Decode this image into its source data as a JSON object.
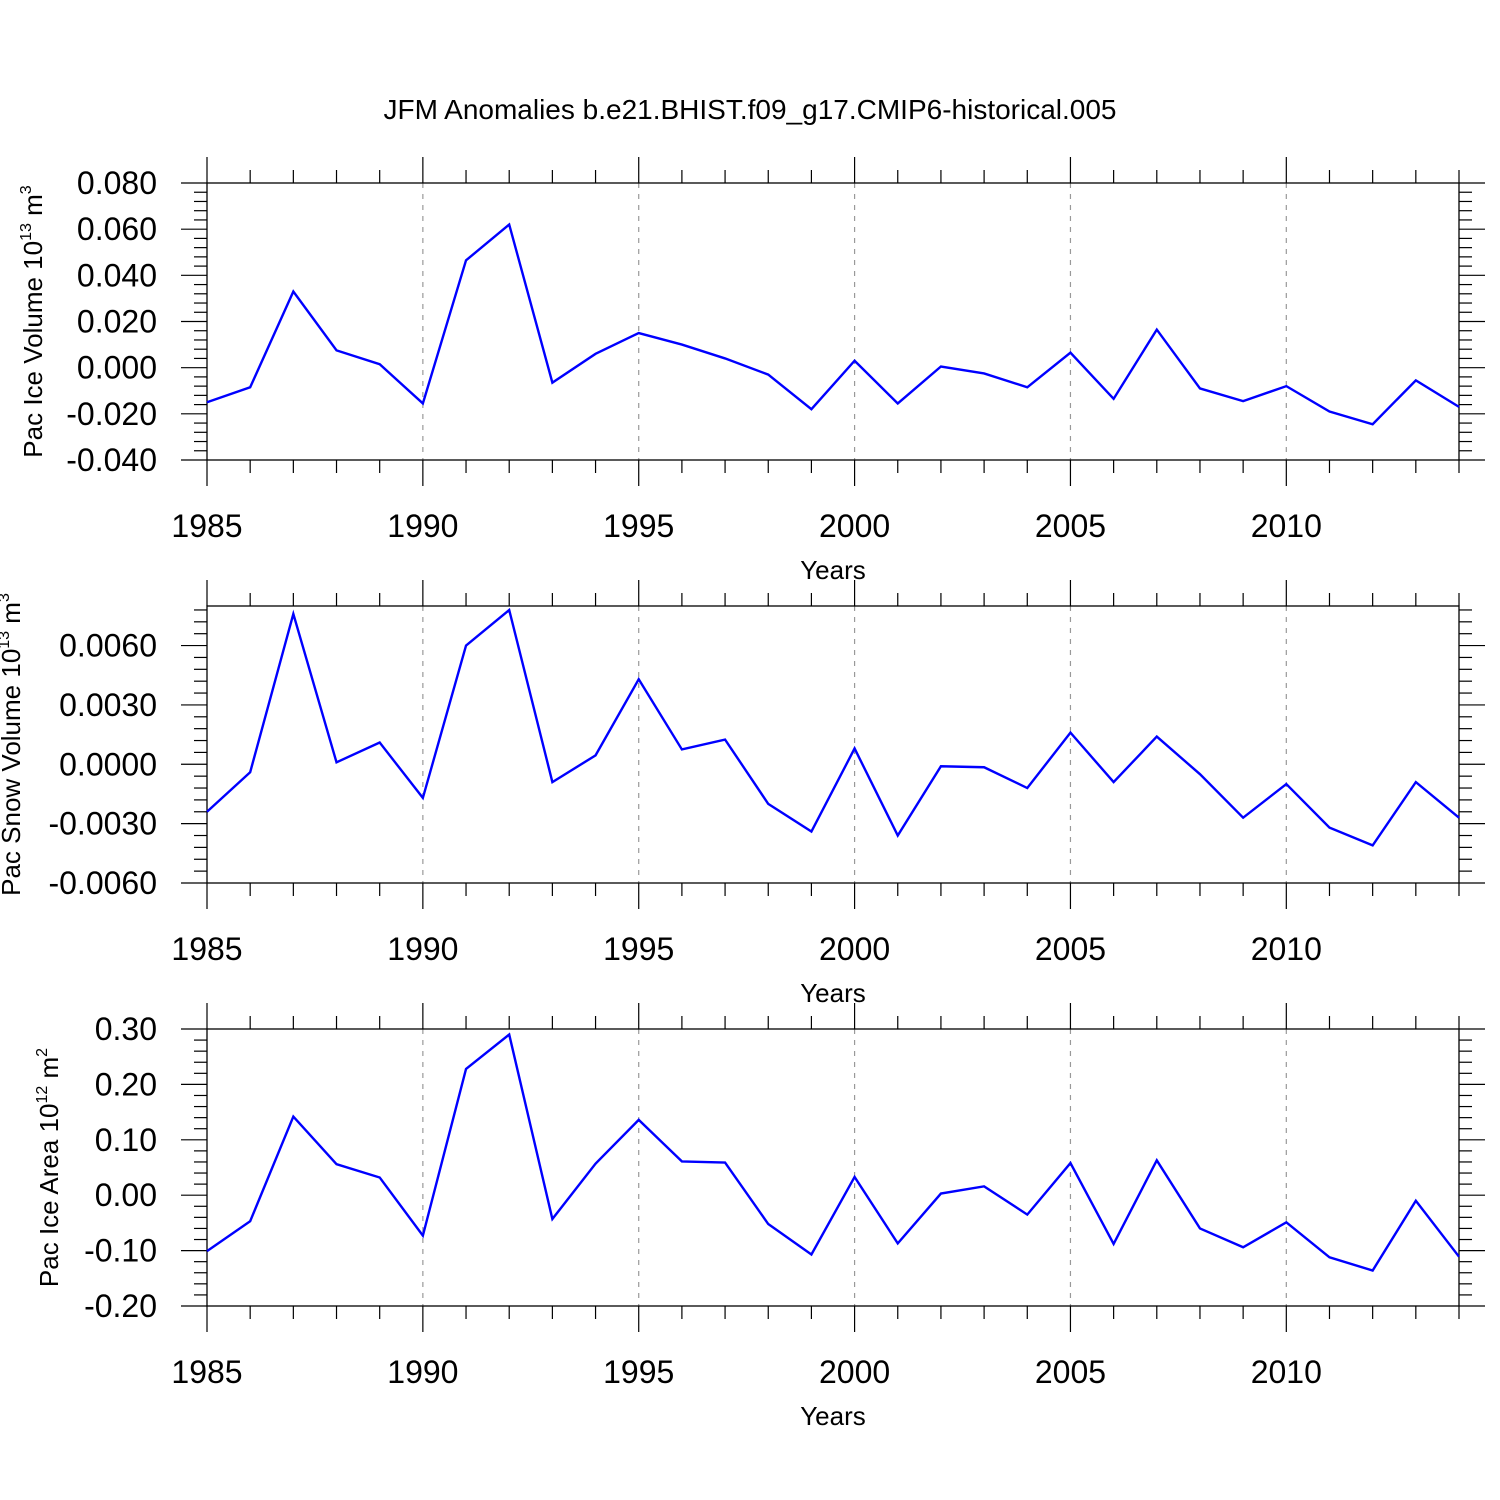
{
  "title": "JFM Anomalies b.e21.BHIST.f09_g17.CMIP6-historical.005",
  "line_color": "#0000ff",
  "chart_data": [
    {
      "type": "line",
      "ylabel_main": "Pac Ice Volume 10",
      "ylabel_exp": "13",
      "ylabel_unit": " m",
      "ylabel_unit_exp": "3",
      "xlabel": "Years",
      "xlim": [
        1985,
        2014
      ],
      "ylim": [
        -0.04,
        0.08
      ],
      "yticks": [
        -0.04,
        -0.02,
        0.0,
        0.02,
        0.04,
        0.06,
        0.08
      ],
      "ytick_labels": [
        "-0.040",
        "-0.020",
        "0.000",
        "0.020",
        "0.040",
        "0.060",
        "0.080"
      ],
      "xticks": [
        1985,
        1990,
        1995,
        2000,
        2005,
        2010
      ],
      "xtick_labels": [
        "1985",
        "1990",
        "1995",
        "2000",
        "2005",
        "2010"
      ],
      "x": [
        1985,
        1986,
        1987,
        1988,
        1989,
        1990,
        1991,
        1992,
        1993,
        1994,
        1995,
        1996,
        1997,
        1998,
        1999,
        2000,
        2001,
        2002,
        2003,
        2004,
        2005,
        2006,
        2007,
        2008,
        2009,
        2010,
        2011,
        2012,
        2013,
        2014
      ],
      "values": [
        -0.015,
        -0.0085,
        0.033,
        0.0075,
        0.0015,
        -0.0155,
        0.0465,
        0.062,
        -0.0065,
        0.006,
        0.015,
        0.01,
        0.004,
        -0.003,
        -0.018,
        0.003,
        -0.0155,
        0.0005,
        -0.0025,
        -0.0085,
        0.0065,
        -0.0135,
        0.0165,
        -0.009,
        -0.0145,
        -0.008,
        -0.019,
        -0.0245,
        -0.0055,
        -0.017
      ]
    },
    {
      "type": "line",
      "ylabel_main": "Pac Snow Volume 10",
      "ylabel_exp": "13",
      "ylabel_unit": " m",
      "ylabel_unit_exp": "3",
      "xlabel": "Years",
      "xlim": [
        1985,
        2014
      ],
      "ylim": [
        -0.006,
        0.008
      ],
      "yticks": [
        -0.006,
        -0.003,
        0.0,
        0.003,
        0.006
      ],
      "ytick_labels": [
        "-0.0060",
        "-0.0030",
        "0.0000",
        "0.0030",
        "0.0060"
      ],
      "xticks": [
        1985,
        1990,
        1995,
        2000,
        2005,
        2010
      ],
      "xtick_labels": [
        "1985",
        "1990",
        "1995",
        "2000",
        "2005",
        "2010"
      ],
      "x": [
        1985,
        1986,
        1987,
        1988,
        1989,
        1990,
        1991,
        1992,
        1993,
        1994,
        1995,
        1996,
        1997,
        1998,
        1999,
        2000,
        2001,
        2002,
        2003,
        2004,
        2005,
        2006,
        2007,
        2008,
        2009,
        2010,
        2011,
        2012,
        2013,
        2014
      ],
      "values": [
        -0.0024,
        -0.0004,
        0.0076,
        0.0001,
        0.0011,
        -0.0017,
        0.006,
        0.0078,
        -0.0009,
        0.00045,
        0.0043,
        0.00075,
        0.00125,
        -0.002,
        -0.0034,
        0.0008,
        -0.0036,
        -0.0001,
        -0.00015,
        -0.0012,
        0.0016,
        -0.0009,
        0.0014,
        -0.0005,
        -0.0027,
        -0.001,
        -0.0032,
        -0.0041,
        -0.0009,
        -0.0027
      ]
    },
    {
      "type": "line",
      "ylabel_main": "Pac Ice Area 10",
      "ylabel_exp": "12",
      "ylabel_unit": " m",
      "ylabel_unit_exp": "2",
      "xlabel": "Years",
      "xlim": [
        1985,
        2014
      ],
      "ylim": [
        -0.2,
        0.3
      ],
      "yticks": [
        -0.2,
        -0.1,
        0.0,
        0.1,
        0.2,
        0.3
      ],
      "ytick_labels": [
        "-0.20",
        "-0.10",
        "0.00",
        "0.10",
        "0.20",
        "0.30"
      ],
      "xticks": [
        1985,
        1990,
        1995,
        2000,
        2005,
        2010
      ],
      "xtick_labels": [
        "1985",
        "1990",
        "1995",
        "2000",
        "2005",
        "2010"
      ],
      "x": [
        1985,
        1986,
        1987,
        1988,
        1989,
        1990,
        1991,
        1992,
        1993,
        1994,
        1995,
        1996,
        1997,
        1998,
        1999,
        2000,
        2001,
        2002,
        2003,
        2004,
        2005,
        2006,
        2007,
        2008,
        2009,
        2010,
        2011,
        2012,
        2013,
        2014
      ],
      "values": [
        -0.101,
        -0.047,
        0.142,
        0.056,
        0.032,
        -0.073,
        0.228,
        0.29,
        -0.043,
        0.057,
        0.136,
        0.061,
        0.059,
        -0.052,
        -0.107,
        0.033,
        -0.087,
        0.003,
        0.016,
        -0.035,
        0.058,
        -0.088,
        0.063,
        -0.06,
        -0.094,
        -0.049,
        -0.112,
        -0.136,
        -0.01,
        -0.111
      ]
    }
  ]
}
